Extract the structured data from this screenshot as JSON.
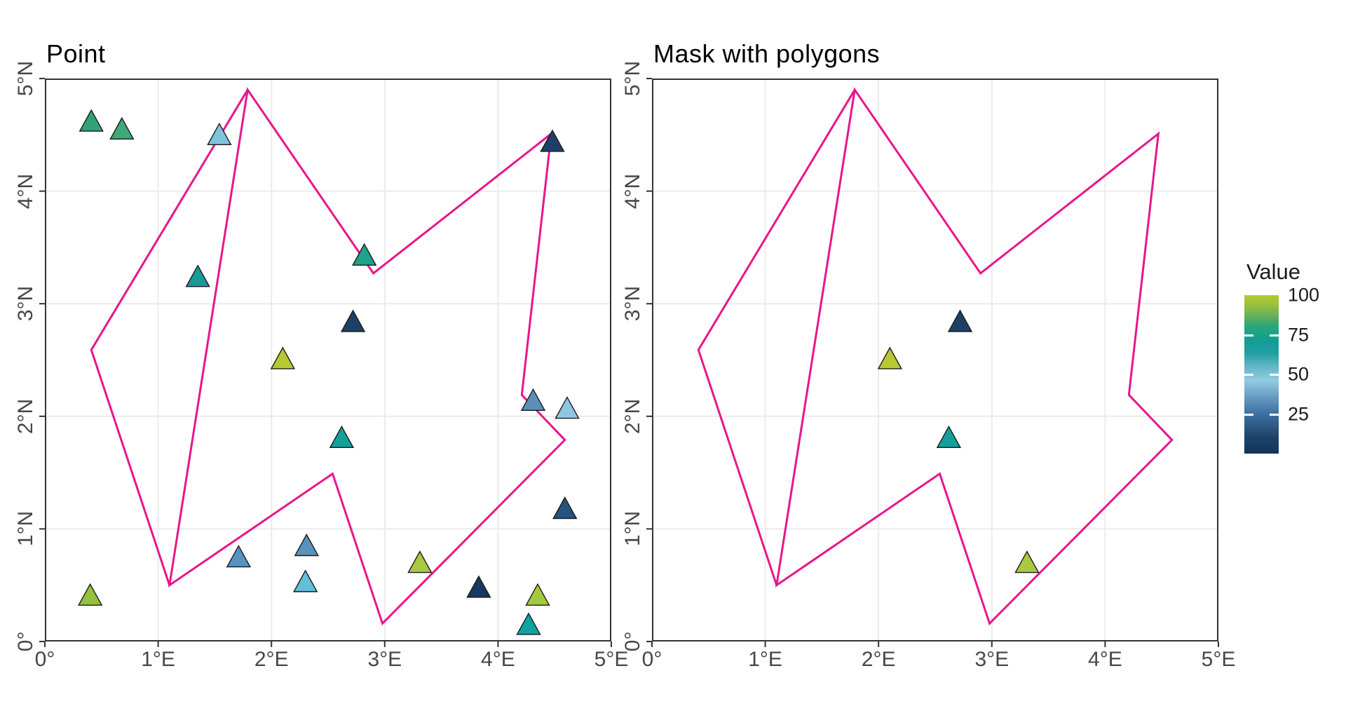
{
  "chart_data": {
    "type": "scatter",
    "subtype": "geographic-point-map-with-polygon-mask",
    "panels": [
      {
        "title": "Point",
        "points": "all"
      },
      {
        "title": "Mask with polygons",
        "points": "masked"
      }
    ],
    "xlim": [
      0,
      5
    ],
    "ylim": [
      0,
      5
    ],
    "grid": true,
    "marker": "triangle-up",
    "x_ticks": {
      "values": [
        0,
        1,
        2,
        3,
        4,
        5
      ],
      "labels": [
        "0°",
        "1°E",
        "2°E",
        "3°E",
        "4°E",
        "5°E"
      ]
    },
    "y_ticks": {
      "values": [
        0,
        1,
        2,
        3,
        4,
        5
      ],
      "labels": [
        "0°",
        "1°N",
        "2°N",
        "3°N",
        "4°N",
        "5°N"
      ]
    },
    "points": [
      {
        "lon": 0.41,
        "lat": 4.62,
        "value": 79,
        "color": "#2FA377"
      },
      {
        "lon": 0.68,
        "lat": 4.55,
        "value": 81,
        "color": "#3EA878"
      },
      {
        "lon": 1.54,
        "lat": 4.5,
        "value": 45,
        "color": "#7FC2DE"
      },
      {
        "lon": 4.48,
        "lat": 4.44,
        "value": 8,
        "color": "#1E4066"
      },
      {
        "lon": 1.35,
        "lat": 3.24,
        "value": 64,
        "color": "#189A96"
      },
      {
        "lon": 2.82,
        "lat": 3.43,
        "value": 73,
        "color": "#21A189"
      },
      {
        "lon": 2.72,
        "lat": 2.84,
        "value": 8,
        "color": "#1D4165"
      },
      {
        "lon": 2.1,
        "lat": 2.51,
        "value": 99,
        "color": "#B7C832"
      },
      {
        "lon": 2.62,
        "lat": 1.81,
        "value": 62,
        "color": "#12A09B"
      },
      {
        "lon": 4.31,
        "lat": 2.14,
        "value": 34,
        "color": "#5B8FB9"
      },
      {
        "lon": 4.61,
        "lat": 2.07,
        "value": 47,
        "color": "#8FC7E2"
      },
      {
        "lon": 4.59,
        "lat": 1.18,
        "value": 15,
        "color": "#26527E"
      },
      {
        "lon": 1.71,
        "lat": 0.75,
        "value": 32,
        "color": "#5493BF"
      },
      {
        "lon": 2.31,
        "lat": 0.85,
        "value": 33,
        "color": "#5793BE"
      },
      {
        "lon": 2.3,
        "lat": 0.53,
        "value": 42,
        "color": "#62BFD9"
      },
      {
        "lon": 3.31,
        "lat": 0.7,
        "value": 94,
        "color": "#A9C943"
      },
      {
        "lon": 3.83,
        "lat": 0.48,
        "value": 5,
        "color": "#17395F"
      },
      {
        "lon": 4.35,
        "lat": 0.41,
        "value": 92,
        "color": "#A3C93F"
      },
      {
        "lon": 4.27,
        "lat": 0.15,
        "value": 61,
        "color": "#0FA3A0"
      },
      {
        "lon": 0.4,
        "lat": 0.41,
        "value": 88,
        "color": "#92C23B"
      }
    ],
    "masked_indices": [
      6,
      7,
      8,
      15
    ],
    "polygons": {
      "color": "#E8158C",
      "stroke_width": 3,
      "rings": [
        {
          "closed": true,
          "pts": [
            [
              1.79,
              4.9
            ],
            [
              2.9,
              3.27
            ],
            [
              4.47,
              4.51
            ],
            [
              4.21,
              2.19
            ],
            [
              4.59,
              1.79
            ],
            [
              2.98,
              0.16
            ],
            [
              2.54,
              1.49
            ],
            [
              1.1,
              0.5
            ]
          ]
        },
        {
          "closed": false,
          "pts": [
            [
              1.79,
              4.9
            ],
            [
              0.41,
              2.59
            ],
            [
              1.1,
              0.5
            ]
          ]
        }
      ]
    },
    "legend": {
      "title": "Value",
      "range": [
        0,
        100
      ],
      "position": "right",
      "ticks": [
        {
          "value": 100,
          "label": "100"
        },
        {
          "value": 75,
          "label": "75"
        },
        {
          "value": 50,
          "label": "50"
        },
        {
          "value": 25,
          "label": "25"
        }
      ],
      "bar_tick_values": [
        75,
        50,
        25
      ],
      "gradient_stops": [
        [
          0.0,
          "#12345A"
        ],
        [
          0.1,
          "#1D4269"
        ],
        [
          0.25,
          "#3D70A0"
        ],
        [
          0.35,
          "#6298C0"
        ],
        [
          0.46,
          "#92CAE3"
        ],
        [
          0.55,
          "#63B6C4"
        ],
        [
          0.63,
          "#23A0A4"
        ],
        [
          0.7,
          "#149C97"
        ],
        [
          0.75,
          "#18A28B"
        ],
        [
          0.81,
          "#2FA678"
        ],
        [
          0.87,
          "#66B059"
        ],
        [
          0.94,
          "#9AC13B"
        ],
        [
          1.0,
          "#B5CA30"
        ]
      ]
    },
    "style_colors": {
      "grid_line": "#EBEBEB",
      "panel_border": "#343434",
      "tick_mark": "#333333",
      "axis_text": "#474747",
      "marker_outline": "#1A1A1A",
      "background": "#FFFFFF"
    }
  }
}
